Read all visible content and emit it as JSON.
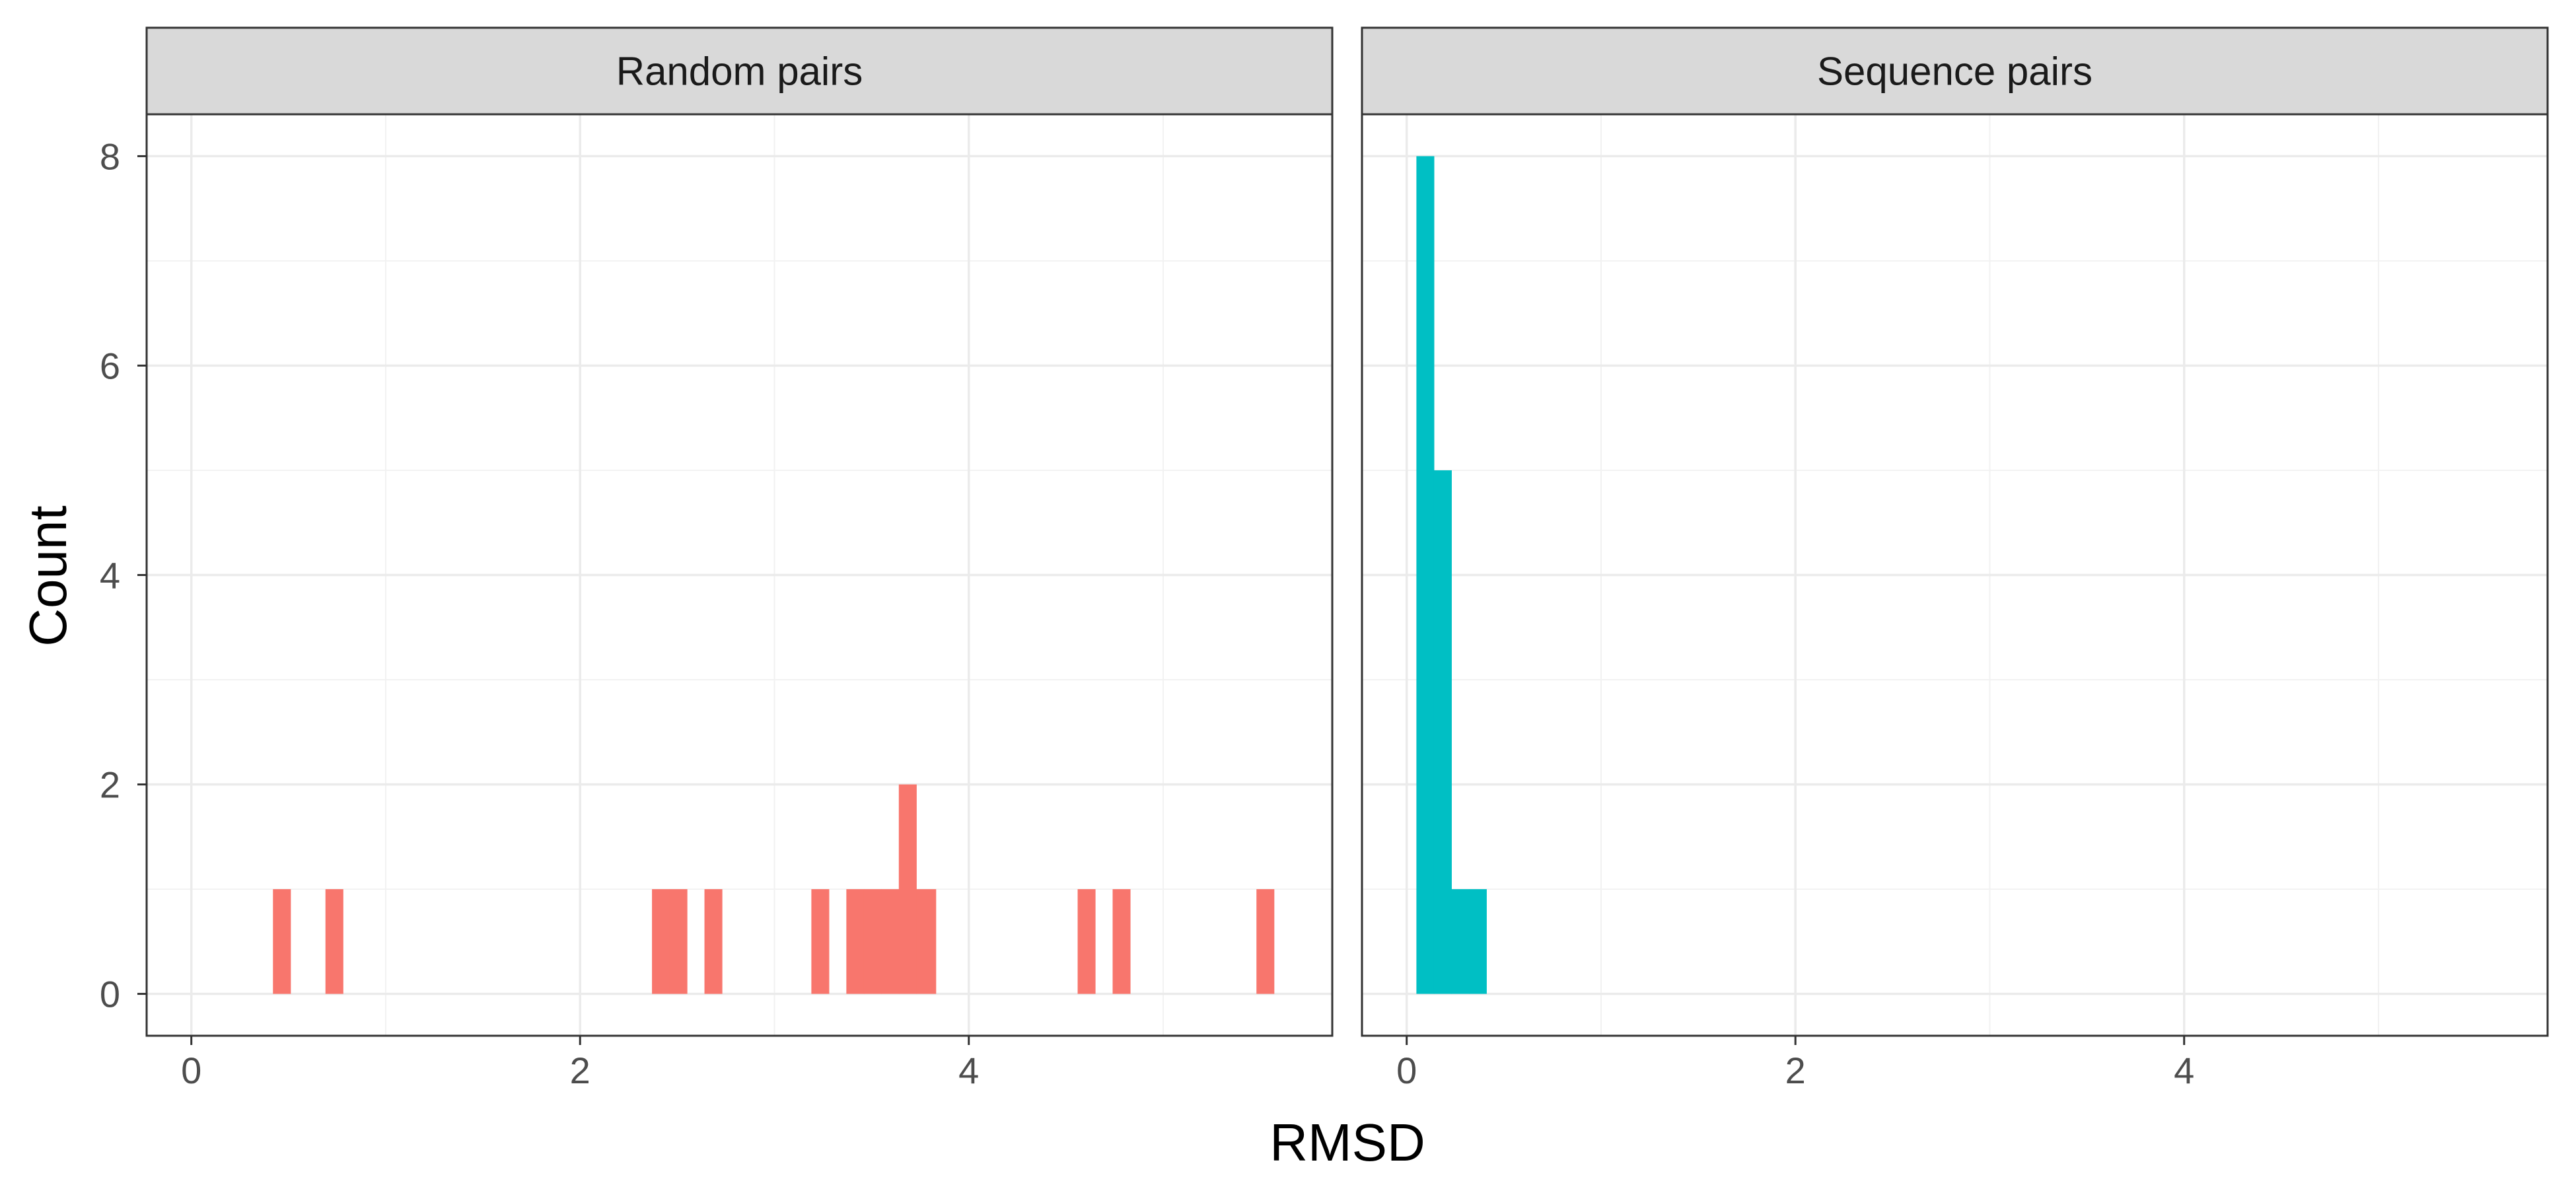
{
  "chart_data": {
    "type": "bar",
    "xlabel": "RMSD",
    "ylabel": "Count",
    "xlim": [
      -0.23,
      5.87
    ],
    "ylim": [
      -0.4,
      8.4
    ],
    "x_ticks": [
      0,
      2,
      4
    ],
    "y_ticks": [
      0,
      2,
      4,
      6,
      8
    ],
    "grid": true,
    "bin_width": 0.09,
    "facets": [
      {
        "label": "Random pairs",
        "color": "#F8766D",
        "bins": [
          {
            "x0": 0.42,
            "x1": 0.51,
            "count": 1
          },
          {
            "x0": 0.69,
            "x1": 0.78,
            "count": 1
          },
          {
            "x0": 2.37,
            "x1": 2.46,
            "count": 1
          },
          {
            "x0": 2.46,
            "x1": 2.55,
            "count": 1
          },
          {
            "x0": 2.64,
            "x1": 2.73,
            "count": 1
          },
          {
            "x0": 3.19,
            "x1": 3.28,
            "count": 1
          },
          {
            "x0": 3.37,
            "x1": 3.46,
            "count": 1
          },
          {
            "x0": 3.46,
            "x1": 3.55,
            "count": 1
          },
          {
            "x0": 3.55,
            "x1": 3.64,
            "count": 1
          },
          {
            "x0": 3.64,
            "x1": 3.73,
            "count": 2
          },
          {
            "x0": 3.73,
            "x1": 3.83,
            "count": 1
          },
          {
            "x0": 4.56,
            "x1": 4.65,
            "count": 1
          },
          {
            "x0": 4.74,
            "x1": 4.83,
            "count": 1
          },
          {
            "x0": 5.48,
            "x1": 5.57,
            "count": 1
          }
        ]
      },
      {
        "label": "Sequence pairs",
        "color": "#00BFC4",
        "bins": [
          {
            "x0": 0.05,
            "x1": 0.14,
            "count": 8
          },
          {
            "x0": 0.14,
            "x1": 0.23,
            "count": 5
          },
          {
            "x0": 0.23,
            "x1": 0.32,
            "count": 1
          },
          {
            "x0": 0.32,
            "x1": 0.41,
            "count": 1
          }
        ]
      }
    ]
  }
}
